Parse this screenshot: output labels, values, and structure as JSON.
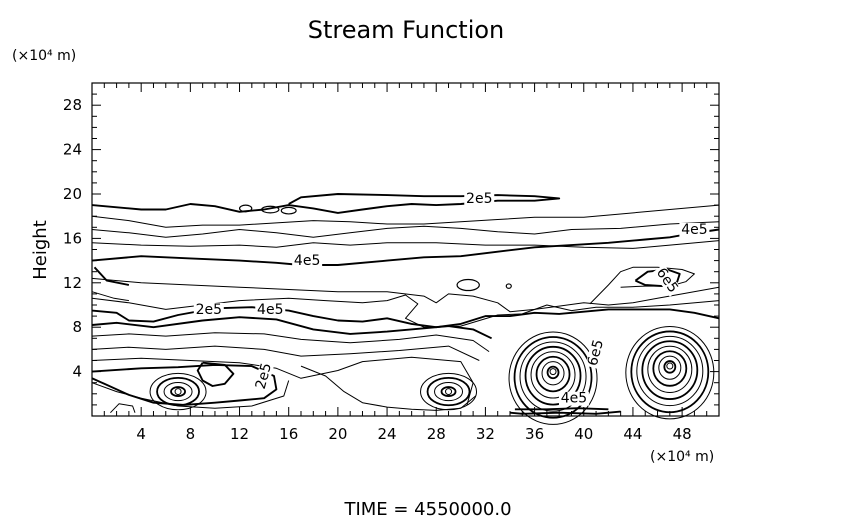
{
  "chart_data": {
    "type": "contour",
    "title": "Stream Function",
    "ylabel": "Height",
    "xunit": "(×10⁴ m)",
    "yunit": "(×10⁴ m)",
    "xlim": [
      0,
      51
    ],
    "ylim": [
      0,
      30
    ],
    "xticks": [
      4,
      8,
      12,
      16,
      20,
      24,
      28,
      32,
      36,
      40,
      44,
      48
    ],
    "yticks": [
      4,
      8,
      12,
      16,
      20,
      24,
      28
    ],
    "grid": false,
    "contour_labels": [
      {
        "text": "2e5",
        "x": 31.5,
        "y": 19.2
      },
      {
        "text": "4e5",
        "x": 49,
        "y": 16.4
      },
      {
        "text": "4e5",
        "x": 17.5,
        "y": 13.6
      },
      {
        "text": "6e5",
        "x": 46.5,
        "y": 12.0
      },
      {
        "text": "2e5",
        "x": 9.5,
        "y": 9.2
      },
      {
        "text": "4e5",
        "x": 14.5,
        "y": 9.2
      },
      {
        "text": "6e5",
        "x": 41.3,
        "y": 5.6
      },
      {
        "text": "2e5",
        "x": 14.3,
        "y": 3.5
      },
      {
        "text": "4e5",
        "x": 39.2,
        "y": 1.2
      }
    ],
    "eddy_centers": [
      {
        "x": 7.0,
        "y": 2.2,
        "rings": 4
      },
      {
        "x": 29.0,
        "y": 2.2,
        "rings": 4
      },
      {
        "x": 37.5,
        "y": 4.0,
        "rings": 8
      },
      {
        "x": 47.0,
        "y": 4.5,
        "rings": 8
      }
    ]
  },
  "footer": {
    "time_text": "TIME  =  4550000.0"
  }
}
